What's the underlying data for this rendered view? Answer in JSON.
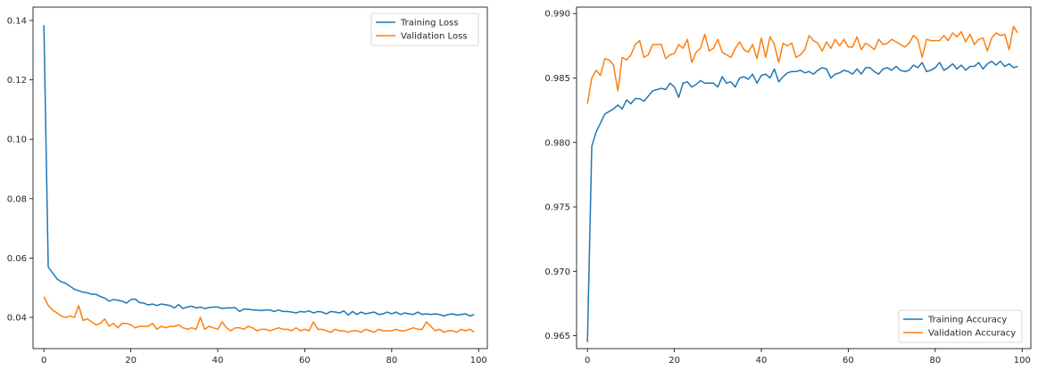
{
  "chart_data": [
    {
      "type": "line",
      "title": "",
      "xlabel": "",
      "ylabel": "",
      "xlim": [
        -2.5,
        102
      ],
      "ylim": [
        0.0295,
        0.1445
      ],
      "xticks": [
        0,
        20,
        40,
        60,
        80,
        100
      ],
      "yticks": [
        0.04,
        0.06,
        0.08,
        0.1,
        0.12,
        0.14
      ],
      "ytick_decimals": 2,
      "legend_position": "top-right",
      "grid": false,
      "x": [
        0,
        1,
        2,
        3,
        4,
        5,
        6,
        7,
        8,
        9,
        10,
        11,
        12,
        13,
        14,
        15,
        16,
        17,
        18,
        19,
        20,
        21,
        22,
        23,
        24,
        25,
        26,
        27,
        28,
        29,
        30,
        31,
        32,
        33,
        34,
        35,
        36,
        37,
        38,
        39,
        40,
        41,
        42,
        43,
        44,
        45,
        46,
        47,
        48,
        49,
        50,
        51,
        52,
        53,
        54,
        55,
        56,
        57,
        58,
        59,
        60,
        61,
        62,
        63,
        64,
        65,
        66,
        67,
        68,
        69,
        70,
        71,
        72,
        73,
        74,
        75,
        76,
        77,
        78,
        79,
        80,
        81,
        82,
        83,
        84,
        85,
        86,
        87,
        88,
        89,
        90,
        91,
        92,
        93,
        94,
        95,
        96,
        97,
        98,
        99
      ],
      "series": [
        {
          "name": "Training Loss",
          "color": "#1f77b4",
          "values": [
            0.1384,
            0.057,
            0.055,
            0.053,
            0.052,
            0.0515,
            0.0505,
            0.0495,
            0.049,
            0.0485,
            0.0483,
            0.0478,
            0.0478,
            0.047,
            0.0465,
            0.0455,
            0.046,
            0.0458,
            0.0455,
            0.0448,
            0.046,
            0.0462,
            0.045,
            0.0448,
            0.0442,
            0.0445,
            0.044,
            0.0445,
            0.0443,
            0.044,
            0.0432,
            0.0443,
            0.043,
            0.0435,
            0.0438,
            0.0432,
            0.0435,
            0.043,
            0.0433,
            0.0435,
            0.0435,
            0.043,
            0.0432,
            0.0432,
            0.0433,
            0.042,
            0.0428,
            0.0428,
            0.0425,
            0.0425,
            0.0423,
            0.0425,
            0.0425,
            0.042,
            0.0425,
            0.042,
            0.042,
            0.0418,
            0.0415,
            0.042,
            0.0418,
            0.0422,
            0.0415,
            0.042,
            0.0418,
            0.0412,
            0.042,
            0.0418,
            0.0415,
            0.0422,
            0.0408,
            0.042,
            0.041,
            0.0418,
            0.0412,
            0.0415,
            0.0418,
            0.041,
            0.0412,
            0.0418,
            0.0412,
            0.0418,
            0.041,
            0.0415,
            0.0412,
            0.041,
            0.0418,
            0.041,
            0.0412,
            0.041,
            0.0412,
            0.041,
            0.0405,
            0.041,
            0.0412,
            0.0408,
            0.041,
            0.0412,
            0.0405,
            0.041
          ]
        },
        {
          "name": "Validation Loss",
          "color": "#ff7f0e",
          "values": [
            0.047,
            0.044,
            0.0425,
            0.0415,
            0.0405,
            0.04,
            0.0405,
            0.04,
            0.044,
            0.039,
            0.0395,
            0.0385,
            0.0375,
            0.038,
            0.0395,
            0.037,
            0.038,
            0.0365,
            0.038,
            0.038,
            0.0375,
            0.0365,
            0.037,
            0.037,
            0.037,
            0.038,
            0.036,
            0.037,
            0.0365,
            0.037,
            0.037,
            0.0375,
            0.0365,
            0.036,
            0.0365,
            0.036,
            0.04,
            0.036,
            0.037,
            0.0365,
            0.036,
            0.0385,
            0.0365,
            0.0355,
            0.0365,
            0.0365,
            0.036,
            0.037,
            0.0365,
            0.0355,
            0.036,
            0.036,
            0.0355,
            0.036,
            0.0365,
            0.036,
            0.036,
            0.0355,
            0.0365,
            0.0355,
            0.036,
            0.0355,
            0.0385,
            0.036,
            0.036,
            0.0355,
            0.035,
            0.036,
            0.0355,
            0.0355,
            0.035,
            0.0355,
            0.0355,
            0.035,
            0.036,
            0.0355,
            0.035,
            0.036,
            0.0355,
            0.0355,
            0.0355,
            0.036,
            0.0355,
            0.0355,
            0.036,
            0.0365,
            0.036,
            0.036,
            0.0385,
            0.037,
            0.0355,
            0.036,
            0.035,
            0.0355,
            0.0355,
            0.035,
            0.036,
            0.0355,
            0.036,
            0.035
          ]
        }
      ]
    },
    {
      "type": "line",
      "title": "",
      "xlabel": "",
      "ylabel": "",
      "xlim": [
        -2.5,
        102
      ],
      "ylim": [
        0.964,
        0.9905
      ],
      "xticks": [
        0,
        20,
        40,
        60,
        80,
        100
      ],
      "yticks": [
        0.965,
        0.97,
        0.975,
        0.98,
        0.985,
        0.99
      ],
      "ytick_decimals": 3,
      "legend_position": "bottom-right",
      "grid": false,
      "x": [
        0,
        1,
        2,
        3,
        4,
        5,
        6,
        7,
        8,
        9,
        10,
        11,
        12,
        13,
        14,
        15,
        16,
        17,
        18,
        19,
        20,
        21,
        22,
        23,
        24,
        25,
        26,
        27,
        28,
        29,
        30,
        31,
        32,
        33,
        34,
        35,
        36,
        37,
        38,
        39,
        40,
        41,
        42,
        43,
        44,
        45,
        46,
        47,
        48,
        49,
        50,
        51,
        52,
        53,
        54,
        55,
        56,
        57,
        58,
        59,
        60,
        61,
        62,
        63,
        64,
        65,
        66,
        67,
        68,
        69,
        70,
        71,
        72,
        73,
        74,
        75,
        76,
        77,
        78,
        79,
        80,
        81,
        82,
        83,
        84,
        85,
        86,
        87,
        88,
        89,
        90,
        91,
        92,
        93,
        94,
        95,
        96,
        97,
        98,
        99
      ],
      "series": [
        {
          "name": "Training Accuracy",
          "color": "#1f77b4",
          "values": [
            0.9645,
            0.9797,
            0.9808,
            0.9815,
            0.9822,
            0.9824,
            0.9826,
            0.9829,
            0.9826,
            0.9833,
            0.983,
            0.9834,
            0.9834,
            0.9832,
            0.9836,
            0.984,
            0.9841,
            0.9842,
            0.9841,
            0.9846,
            0.9843,
            0.9835,
            0.9846,
            0.9847,
            0.9843,
            0.9845,
            0.9848,
            0.9846,
            0.9846,
            0.9846,
            0.9843,
            0.9851,
            0.9846,
            0.9847,
            0.9843,
            0.985,
            0.9851,
            0.9849,
            0.9853,
            0.9846,
            0.9852,
            0.9853,
            0.985,
            0.9857,
            0.9847,
            0.9851,
            0.9854,
            0.9855,
            0.9855,
            0.9856,
            0.9854,
            0.9855,
            0.9853,
            0.9856,
            0.9858,
            0.9857,
            0.985,
            0.9853,
            0.9854,
            0.9856,
            0.9855,
            0.9853,
            0.9857,
            0.9853,
            0.9858,
            0.9858,
            0.9855,
            0.9853,
            0.9857,
            0.9858,
            0.9856,
            0.9859,
            0.9856,
            0.9855,
            0.9856,
            0.986,
            0.9858,
            0.9862,
            0.9855,
            0.9856,
            0.9858,
            0.9862,
            0.9856,
            0.9858,
            0.9861,
            0.9857,
            0.986,
            0.9856,
            0.9859,
            0.9859,
            0.9862,
            0.9857,
            0.9861,
            0.9863,
            0.986,
            0.9863,
            0.9859,
            0.9861,
            0.9858,
            0.9859
          ]
        },
        {
          "name": "Validation Accuracy",
          "color": "#ff7f0e",
          "values": [
            0.983,
            0.985,
            0.9856,
            0.9852,
            0.9865,
            0.9864,
            0.986,
            0.984,
            0.9866,
            0.9864,
            0.9868,
            0.9876,
            0.9879,
            0.9866,
            0.9868,
            0.9876,
            0.9876,
            0.9876,
            0.9865,
            0.9868,
            0.9869,
            0.9876,
            0.9873,
            0.988,
            0.9862,
            0.987,
            0.9873,
            0.9884,
            0.9871,
            0.9873,
            0.988,
            0.987,
            0.9868,
            0.9866,
            0.9873,
            0.9878,
            0.9872,
            0.987,
            0.9876,
            0.9865,
            0.9881,
            0.9866,
            0.9882,
            0.9876,
            0.9862,
            0.9877,
            0.9875,
            0.9877,
            0.9866,
            0.9868,
            0.9872,
            0.9883,
            0.9879,
            0.9877,
            0.9871,
            0.9878,
            0.9873,
            0.988,
            0.9875,
            0.988,
            0.9874,
            0.9874,
            0.9882,
            0.9872,
            0.9877,
            0.9875,
            0.9872,
            0.988,
            0.9876,
            0.9877,
            0.988,
            0.9878,
            0.9876,
            0.9874,
            0.9877,
            0.9883,
            0.988,
            0.9866,
            0.988,
            0.9879,
            0.9879,
            0.9879,
            0.9883,
            0.9879,
            0.9885,
            0.9882,
            0.9886,
            0.9878,
            0.9884,
            0.9876,
            0.988,
            0.9881,
            0.9871,
            0.9881,
            0.9885,
            0.9883,
            0.9884,
            0.9872,
            0.989,
            0.9885
          ]
        }
      ]
    }
  ]
}
